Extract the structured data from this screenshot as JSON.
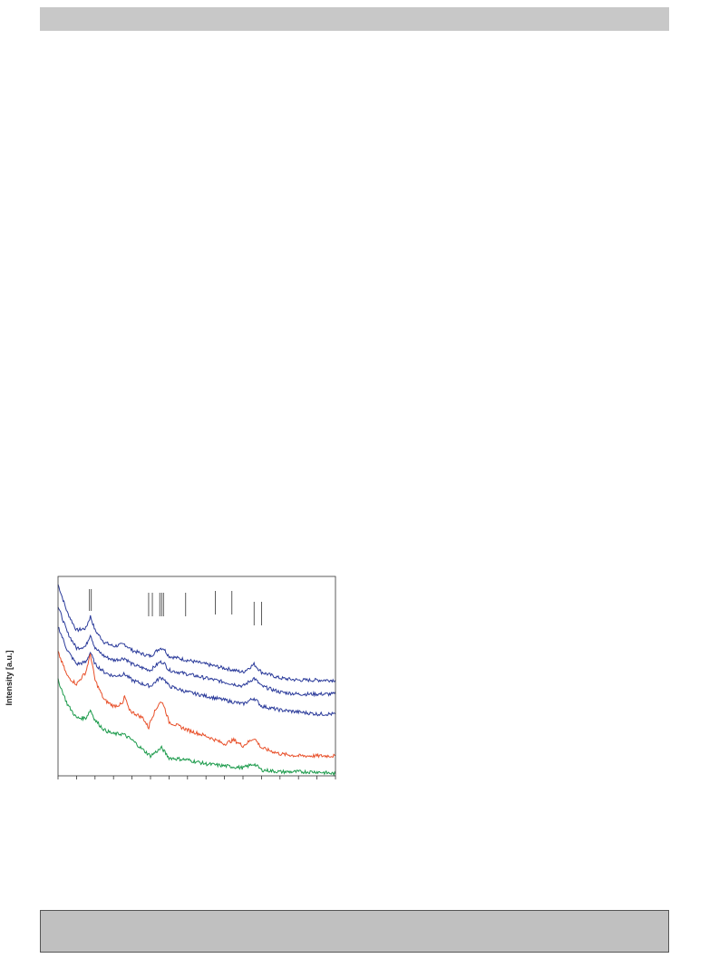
{
  "page": {
    "header_bar": "",
    "footer_box": ""
  },
  "chart_data": {
    "type": "line",
    "title": "",
    "xlabel": "",
    "ylabel": "Intensity [a.u.]",
    "xlim": [
      0,
      15
    ],
    "ylim": [
      0,
      10
    ],
    "x_tick_count": 16,
    "grid": false,
    "legend": "none",
    "reference_marks": [
      1.7,
      1.8,
      4.9,
      5.1,
      5.5,
      5.6,
      5.7,
      6.9,
      8.5,
      9.4,
      10.6,
      11.0
    ],
    "series": [
      {
        "color": "#2a3a9a",
        "x": [
          0,
          0.5,
          1.0,
          1.5,
          1.75,
          2.0,
          2.5,
          3.0,
          3.6,
          4.0,
          4.6,
          5.0,
          5.5,
          5.7,
          6.0,
          7.0,
          8.0,
          9.0,
          10.0,
          10.6,
          11.0,
          12.0,
          13.0,
          14.0,
          15.0
        ],
        "y": [
          9.6,
          8.2,
          7.3,
          7.4,
          8.0,
          7.3,
          6.7,
          6.5,
          6.6,
          6.3,
          6.1,
          6.0,
          6.4,
          6.4,
          6.0,
          5.8,
          5.6,
          5.4,
          5.2,
          5.6,
          5.2,
          4.9,
          4.8,
          4.8,
          4.8
        ]
      },
      {
        "color": "#2a3a9a",
        "x": [
          0,
          0.5,
          1.0,
          1.5,
          1.75,
          2.0,
          2.5,
          3.0,
          3.6,
          4.0,
          4.6,
          5.0,
          5.5,
          5.7,
          6.0,
          7.0,
          8.0,
          9.0,
          10.0,
          10.6,
          11.0,
          12.0,
          13.0,
          14.0,
          15.0
        ],
        "y": [
          8.5,
          7.2,
          6.4,
          6.5,
          7.1,
          6.4,
          6.0,
          5.8,
          5.9,
          5.6,
          5.4,
          5.3,
          5.7,
          5.7,
          5.3,
          5.1,
          4.9,
          4.7,
          4.5,
          4.9,
          4.5,
          4.2,
          4.1,
          4.1,
          4.1
        ]
      },
      {
        "color": "#2a3a9a",
        "x": [
          0,
          0.5,
          1.0,
          1.5,
          1.75,
          2.0,
          2.5,
          3.0,
          3.6,
          4.0,
          4.6,
          5.0,
          5.5,
          5.7,
          6.0,
          7.0,
          8.0,
          9.0,
          10.0,
          10.6,
          11.0,
          12.0,
          13.0,
          14.0,
          15.0
        ],
        "y": [
          7.5,
          6.3,
          5.6,
          5.7,
          6.2,
          5.6,
          5.2,
          5.0,
          5.1,
          4.8,
          4.6,
          4.5,
          4.9,
          4.9,
          4.5,
          4.2,
          4.0,
          3.8,
          3.6,
          3.9,
          3.5,
          3.3,
          3.2,
          3.1,
          3.1
        ]
      },
      {
        "color": "#e8502a",
        "x": [
          0,
          0.5,
          1.0,
          1.5,
          1.75,
          2.0,
          2.5,
          3.0,
          3.5,
          3.6,
          3.8,
          4.0,
          4.6,
          4.9,
          5.0,
          5.5,
          5.7,
          6.0,
          7.0,
          8.0,
          8.5,
          9.0,
          9.5,
          10.0,
          10.6,
          11.0,
          12.0,
          13.0,
          14.0,
          15.0
        ],
        "y": [
          6.2,
          5.0,
          4.6,
          5.2,
          6.1,
          4.8,
          3.8,
          3.5,
          3.6,
          4.0,
          3.4,
          3.2,
          2.9,
          2.4,
          2.8,
          3.7,
          3.6,
          2.7,
          2.3,
          2.0,
          1.8,
          1.6,
          1.8,
          1.5,
          1.9,
          1.4,
          1.1,
          1.0,
          1.0,
          1.0
        ]
      },
      {
        "color": "#1a9a4a",
        "x": [
          0,
          0.5,
          1.0,
          1.5,
          1.75,
          2.0,
          2.5,
          3.0,
          3.5,
          4.0,
          4.6,
          5.0,
          5.6,
          6.0,
          7.0,
          8.0,
          9.0,
          10.0,
          10.6,
          11.0,
          12.0,
          13.0,
          14.0,
          15.0
        ],
        "y": [
          4.8,
          3.6,
          2.9,
          2.9,
          3.3,
          2.8,
          2.3,
          2.1,
          2.1,
          1.8,
          1.3,
          1.0,
          1.4,
          0.9,
          0.8,
          0.6,
          0.5,
          0.4,
          0.6,
          0.3,
          0.2,
          0.2,
          0.2,
          0.1
        ]
      }
    ]
  }
}
